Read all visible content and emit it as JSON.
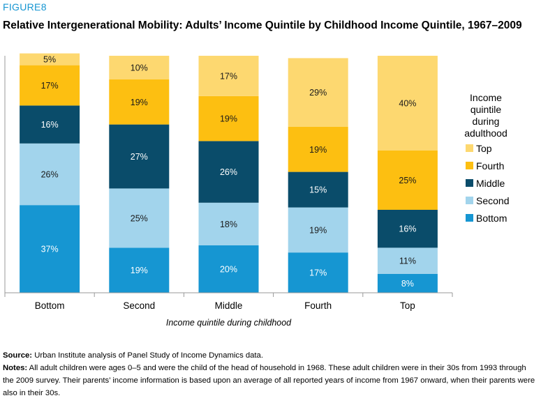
{
  "figure_label": "FIGURE8",
  "title": "Relative Intergenerational Mobility: Adults’ Income Quintile by Childhood Income Quintile, 1967–2009",
  "chart_data": {
    "type": "bar",
    "stacked": true,
    "title": "Relative Intergenerational Mobility: Adults’ Income Quintile by Childhood Income Quintile, 1967–2009",
    "xlabel": "Income quintile during childhood",
    "ylabel": "",
    "ylim": [
      0,
      100
    ],
    "categories": [
      "Bottom",
      "Second",
      "Middle",
      "Fourth",
      "Top"
    ],
    "legend_title": "Income quintile during adulthood",
    "legend_position": "right",
    "series": [
      {
        "name": "Bottom",
        "color": "#1696d2",
        "values": [
          37,
          19,
          20,
          17,
          8
        ],
        "labels": [
          "37%",
          "19%",
          "20%",
          "17%",
          "8%"
        ]
      },
      {
        "name": "Second",
        "color": "#a2d4ec",
        "values": [
          26,
          25,
          18,
          19,
          11
        ],
        "labels": [
          "26%",
          "25%",
          "18%",
          "19%",
          "11%"
        ]
      },
      {
        "name": "Middle",
        "color": "#0a4c6a",
        "values": [
          16,
          27,
          26,
          15,
          16
        ],
        "labels": [
          "16%",
          "27%",
          "26%",
          "15%",
          "16%"
        ]
      },
      {
        "name": "Fourth",
        "color": "#fdbf11",
        "values": [
          17,
          19,
          19,
          19,
          25
        ],
        "labels": [
          "17%",
          "19%",
          "19%",
          "19%",
          "25%"
        ]
      },
      {
        "name": "Top",
        "color": "#fdd870",
        "values": [
          5,
          10,
          17,
          29,
          40
        ],
        "labels": [
          "5%",
          "10%",
          "17%",
          "29%",
          "40%"
        ]
      }
    ]
  },
  "legend": {
    "title_lines": [
      "Income",
      "quintile",
      "during",
      "adulthood"
    ],
    "items": [
      {
        "label": "Top",
        "color": "#fdd870"
      },
      {
        "label": "Fourth",
        "color": "#fdbf11"
      },
      {
        "label": "Middle",
        "color": "#0a4c6a"
      },
      {
        "label": "Second",
        "color": "#a2d4ec"
      },
      {
        "label": "Bottom",
        "color": "#1696d2"
      }
    ]
  },
  "notes": {
    "source_label": "Source:",
    "source_text": "Urban Institute analysis of Panel Study of Income Dynamics data.",
    "notes_label": "Notes:",
    "notes_text": "All adult children were ages 0–5 and were the child of the head of household in 1968. These adult children were in their 30s from 1993 through the 2009 survey. Their parents’ income information is based upon an average of all reported years of income from 1967 onward, when their parents were also in their 30s."
  }
}
